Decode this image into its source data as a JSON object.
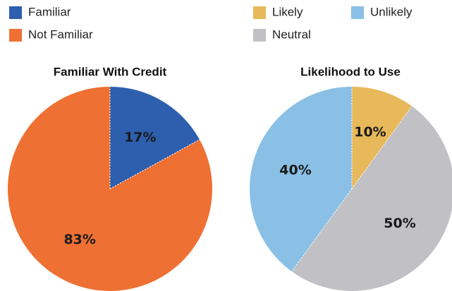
{
  "chart_data": [
    {
      "type": "pie",
      "title": "Familiar With Credit",
      "categories": [
        "Familiar",
        "Not Familiar"
      ],
      "values": [
        17,
        83
      ],
      "value_labels": [
        "17%",
        "83%"
      ],
      "colors": [
        "#2e5fae",
        "#ee7033"
      ]
    },
    {
      "type": "pie",
      "title": "Likelihood to Use",
      "categories": [
        "Likely",
        "Neutral",
        "Unlikely"
      ],
      "values": [
        10,
        50,
        40
      ],
      "value_labels": [
        "10%",
        "50%",
        "40%"
      ],
      "colors": [
        "#e8b95a",
        "#c0c0c5",
        "#8ac0e6"
      ]
    }
  ]
}
